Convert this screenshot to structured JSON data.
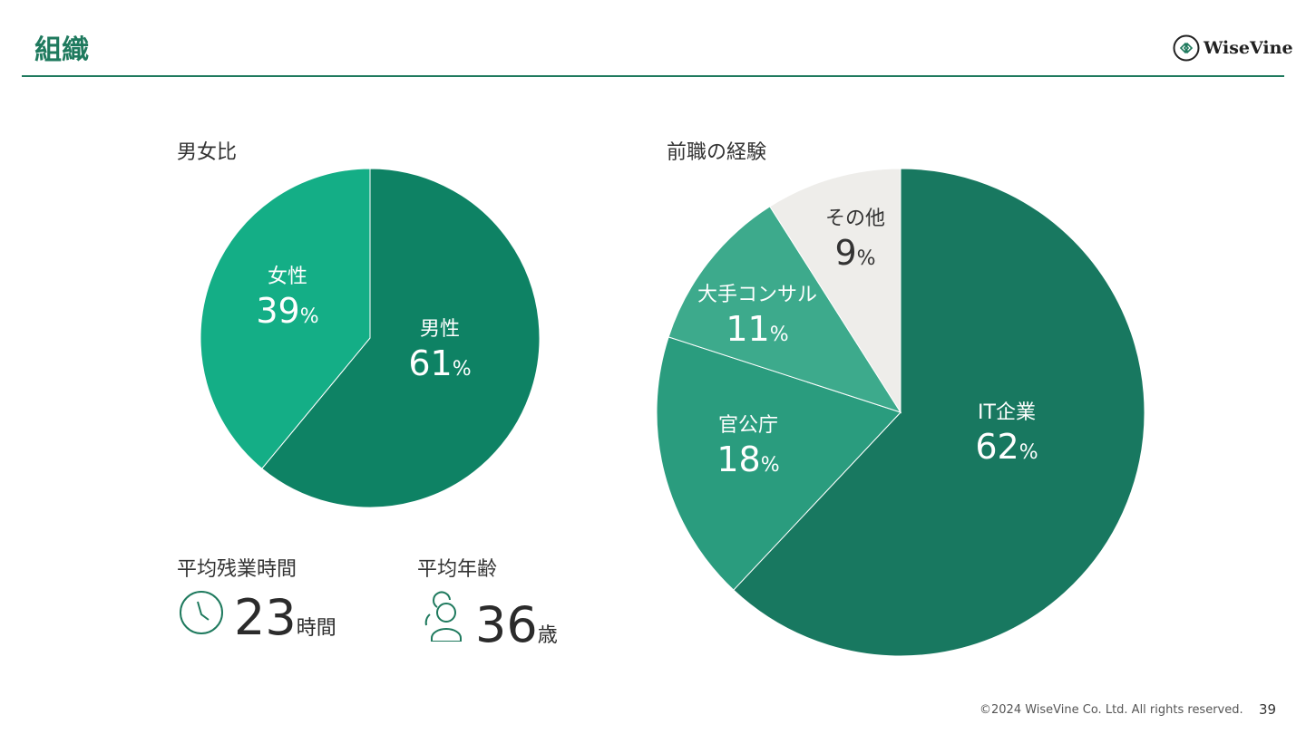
{
  "header": {
    "title": "組織",
    "logo_text": "WiseVine"
  },
  "chart_data": [
    {
      "type": "pie",
      "title": "男女比",
      "slices": [
        {
          "label": "男性",
          "value": 61,
          "color": "#0e8264"
        },
        {
          "label": "女性",
          "value": 39,
          "color": "#14ae86"
        }
      ],
      "unit": "%"
    },
    {
      "type": "pie",
      "title": "前職の経験",
      "slices": [
        {
          "label": "IT企業",
          "value": 62,
          "color": "#187860"
        },
        {
          "label": "官公庁",
          "value": 18,
          "color": "#2a9c7e"
        },
        {
          "label": "大手コンサル",
          "value": 11,
          "color": "#3daa8c"
        },
        {
          "label": "その他",
          "value": 9,
          "color": "#eeedea"
        }
      ],
      "unit": "%"
    }
  ],
  "stats": [
    {
      "label": "平均残業時間",
      "value": "23",
      "unit": "時間",
      "icon": "clock-icon"
    },
    {
      "label": "平均年齢",
      "value": "36",
      "unit": "歳",
      "icon": "people-icon"
    }
  ],
  "footer": {
    "copyright": "©2024 WiseVine Co. Ltd. All rights reserved.",
    "page": "39"
  }
}
